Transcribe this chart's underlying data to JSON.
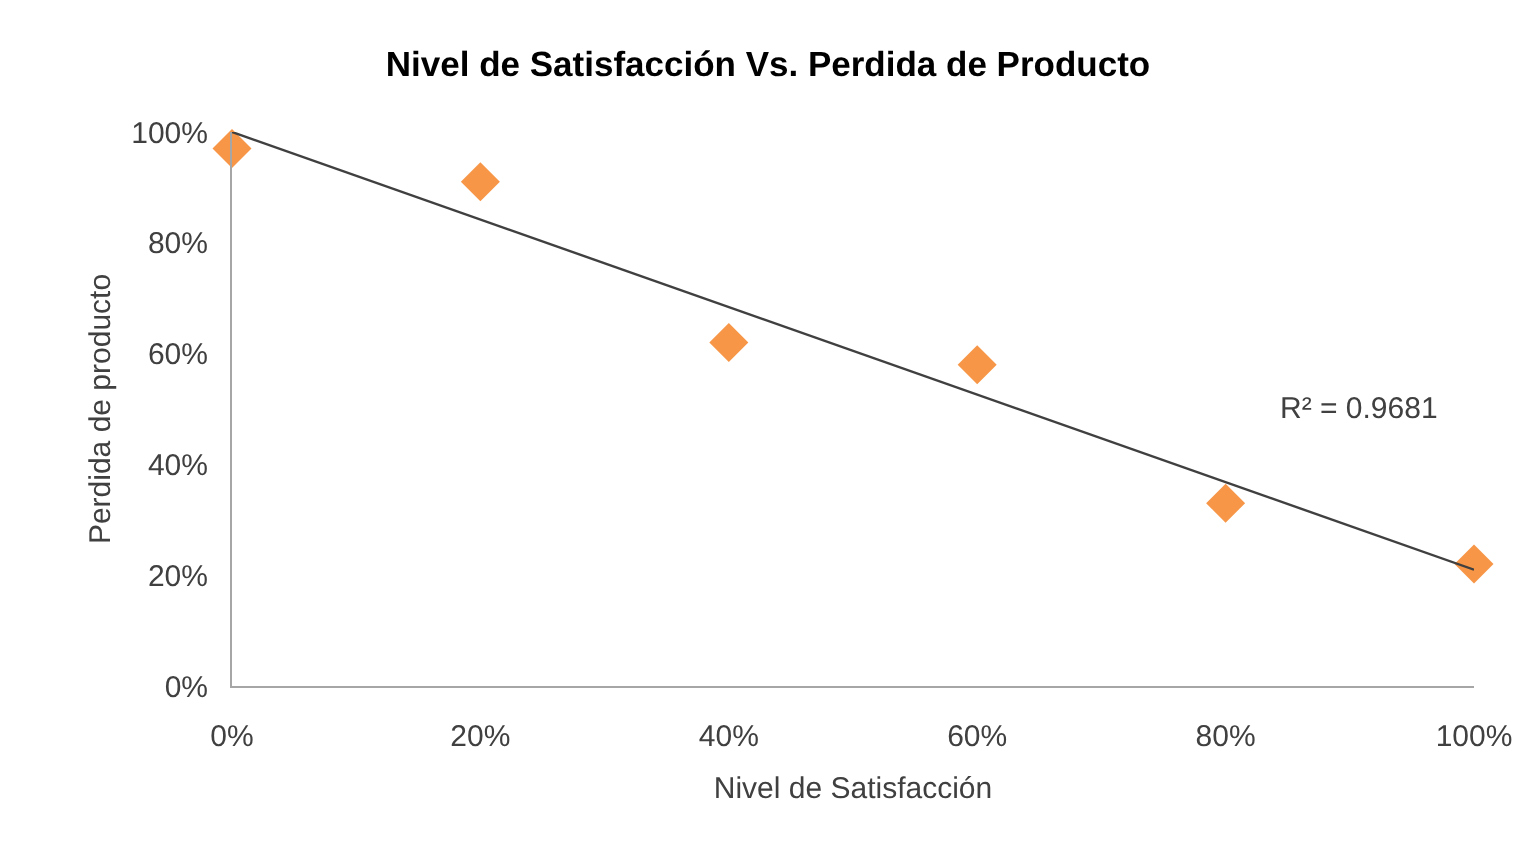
{
  "chart_data": {
    "type": "scatter",
    "title": "Nivel de Satisfacción Vs. Perdida de Producto",
    "xlabel": "Nivel de Satisfacción",
    "ylabel": "Perdida de producto",
    "x": [
      0,
      20,
      40,
      60,
      80,
      100
    ],
    "series": [
      {
        "color": "#f79646",
        "values": [
          97,
          91,
          62,
          58,
          33,
          22
        ]
      },
      {
        "type": "line",
        "x": [
          0,
          100
        ],
        "values": [
          100,
          21
        ],
        "color": "#404040",
        "marker": "none",
        "line_style": "solid"
      }
    ],
    "marker": "diamond",
    "xlim": [
      0,
      100
    ],
    "ylim": [
      0,
      100
    ],
    "xticks": [
      {
        "value": 0,
        "label": "0%"
      },
      {
        "value": 20,
        "label": "20%"
      },
      {
        "value": 40,
        "label": "40%"
      },
      {
        "value": 60,
        "label": "60%"
      },
      {
        "value": 80,
        "label": "80%"
      },
      {
        "value": 100,
        "label": "100%"
      }
    ],
    "yticks": [
      {
        "value": 0,
        "label": "0%"
      },
      {
        "value": 20,
        "label": "20%"
      },
      {
        "value": 40,
        "label": "40%"
      },
      {
        "value": 60,
        "label": "60%"
      },
      {
        "value": 80,
        "label": "80%"
      },
      {
        "value": 100,
        "label": "100%"
      }
    ],
    "grid": false,
    "legend": false,
    "annotations": [
      "R² = 0.9681"
    ]
  }
}
